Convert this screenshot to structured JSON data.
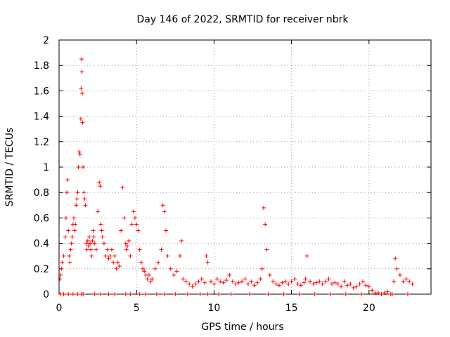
{
  "chart_data": {
    "type": "scatter",
    "title": "Day 146 of 2022, SRMTID for receiver nbrk",
    "xlabel": "GPS time / hours",
    "ylabel": "SRMTID / TECUs",
    "xlim": [
      0,
      24
    ],
    "ylim": [
      0,
      2
    ],
    "xticks": [
      0,
      5,
      10,
      15,
      20
    ],
    "xtick_labels": [
      "0",
      "5",
      "10",
      "15",
      "20"
    ],
    "yticks": [
      0,
      0.2,
      0.4,
      0.6,
      0.8,
      1,
      1.2,
      1.4,
      1.6,
      1.8,
      2
    ],
    "ytick_labels": [
      "0",
      "0.2",
      "0.4",
      "0.6",
      "0.8",
      "1",
      "1.2",
      "1.4",
      "1.6",
      "1.8",
      "2"
    ],
    "grid": true,
    "marker": "+",
    "color": "#ff0000",
    "series": [
      {
        "name": "SRMTID",
        "x": [
          0.05,
          0.1,
          0.15,
          0.2,
          0.3,
          0.4,
          0.45,
          0.5,
          0.55,
          0.6,
          0.65,
          0.7,
          0.75,
          0.8,
          0.85,
          0.9,
          0.95,
          1.0,
          1.05,
          1.1,
          1.15,
          1.2,
          1.25,
          1.3,
          1.35,
          1.4,
          1.42,
          1.45,
          1.47,
          1.5,
          1.52,
          1.55,
          1.6,
          1.65,
          1.7,
          1.75,
          1.8,
          1.85,
          1.9,
          1.95,
          2.0,
          2.05,
          2.1,
          2.15,
          2.2,
          2.25,
          2.3,
          2.4,
          2.5,
          2.6,
          2.65,
          2.7,
          2.75,
          2.8,
          2.9,
          3.0,
          3.1,
          3.2,
          3.3,
          3.4,
          3.5,
          3.6,
          3.7,
          3.8,
          3.9,
          4.0,
          4.1,
          4.2,
          4.3,
          4.35,
          4.4,
          4.5,
          4.6,
          4.7,
          4.8,
          4.9,
          5.0,
          5.1,
          5.2,
          5.3,
          5.4,
          5.5,
          5.6,
          5.7,
          5.8,
          5.9,
          6.0,
          6.2,
          6.4,
          6.6,
          6.7,
          6.8,
          6.9,
          7.0,
          7.2,
          7.4,
          7.6,
          7.8,
          7.9,
          8.0,
          8.2,
          8.4,
          8.6,
          8.8,
          9.0,
          9.2,
          9.4,
          9.5,
          9.6,
          9.8,
          10.0,
          10.2,
          10.4,
          10.6,
          10.8,
          11.0,
          11.2,
          11.4,
          11.6,
          11.8,
          12.0,
          12.2,
          12.4,
          12.6,
          12.8,
          13.0,
          13.1,
          13.2,
          13.3,
          13.4,
          13.6,
          13.8,
          14.0,
          14.2,
          14.4,
          14.6,
          14.8,
          15.0,
          15.2,
          15.4,
          15.6,
          15.8,
          15.9,
          16.0,
          16.2,
          16.4,
          16.6,
          16.8,
          17.0,
          17.2,
          17.4,
          17.6,
          17.8,
          18.0,
          18.2,
          18.4,
          18.6,
          18.8,
          19.0,
          19.2,
          19.4,
          19.6,
          19.8,
          20.0,
          20.2,
          20.4,
          20.6,
          20.8,
          21.0,
          21.2,
          21.4,
          21.6,
          21.7,
          21.8,
          22.0,
          22.2,
          22.4,
          22.6,
          22.8,
          0.1,
          0.3,
          0.6,
          0.9,
          1.2,
          1.45,
          1.55,
          2.3,
          2.7,
          3.2,
          3.6,
          4.3,
          4.6,
          5.2,
          5.6,
          6.3,
          6.8,
          7.5,
          8.3,
          9.1,
          9.6,
          10.3,
          11.1,
          12.3,
          13.5,
          14.5,
          15.5,
          16.5,
          17.5,
          18.5,
          19.5,
          21.5,
          22.5
        ],
        "y": [
          0.12,
          0.15,
          0.2,
          0.25,
          0.3,
          0.45,
          0.6,
          0.8,
          0.9,
          0.5,
          0.3,
          0.25,
          0.35,
          0.4,
          0.45,
          0.55,
          0.6,
          0.5,
          0.55,
          0.7,
          0.75,
          0.8,
          1.0,
          1.12,
          1.1,
          1.38,
          1.62,
          1.85,
          1.75,
          1.58,
          1.35,
          1.0,
          0.8,
          0.75,
          0.7,
          0.4,
          0.35,
          0.42,
          0.38,
          0.45,
          0.4,
          0.35,
          0.3,
          0.42,
          0.5,
          0.45,
          0.4,
          0.35,
          0.65,
          0.88,
          0.85,
          0.55,
          0.5,
          0.45,
          0.4,
          0.3,
          0.35,
          0.28,
          0.3,
          0.35,
          0.25,
          0.3,
          0.2,
          0.25,
          0.22,
          0.5,
          0.84,
          0.6,
          0.4,
          0.35,
          0.38,
          0.42,
          0.3,
          0.55,
          0.65,
          0.6,
          0.55,
          0.5,
          0.35,
          0.25,
          0.2,
          0.18,
          0.15,
          0.12,
          0.15,
          0.1,
          0.12,
          0.2,
          0.25,
          0.35,
          0.7,
          0.65,
          0.5,
          0.3,
          0.2,
          0.15,
          0.18,
          0.3,
          0.42,
          0.12,
          0.1,
          0.08,
          0.06,
          0.08,
          0.1,
          0.12,
          0.09,
          0.3,
          0.25,
          0.1,
          0.08,
          0.12,
          0.1,
          0.09,
          0.11,
          0.15,
          0.1,
          0.08,
          0.09,
          0.1,
          0.12,
          0.08,
          0.1,
          0.07,
          0.09,
          0.12,
          0.2,
          0.68,
          0.55,
          0.35,
          0.15,
          0.1,
          0.08,
          0.07,
          0.09,
          0.1,
          0.08,
          0.1,
          0.12,
          0.08,
          0.07,
          0.09,
          0.12,
          0.3,
          0.1,
          0.08,
          0.09,
          0.1,
          0.08,
          0.1,
          0.12,
          0.08,
          0.09,
          0.08,
          0.06,
          0.1,
          0.07,
          0.08,
          0.05,
          0.06,
          0.08,
          0.1,
          0.07,
          0.06,
          0.03,
          0.01,
          0.01,
          0.0,
          0.01,
          0.02,
          0.0,
          0.1,
          0.28,
          0.2,
          0.15,
          0.1,
          0.12,
          0.1,
          0.08,
          0.0,
          0.0,
          0.0,
          0.0,
          0.0,
          0.0,
          0.0,
          0.0,
          0.0,
          0.0,
          0.0,
          0.0,
          0.0,
          0.0,
          0.0,
          0.0,
          0.0,
          0.0,
          0.0,
          0.0,
          0.0,
          0.0,
          0.0,
          0.0,
          0.0,
          0.0,
          0.0,
          0.0,
          0.0,
          0.0,
          0.0,
          0.0,
          0.0
        ]
      }
    ]
  }
}
